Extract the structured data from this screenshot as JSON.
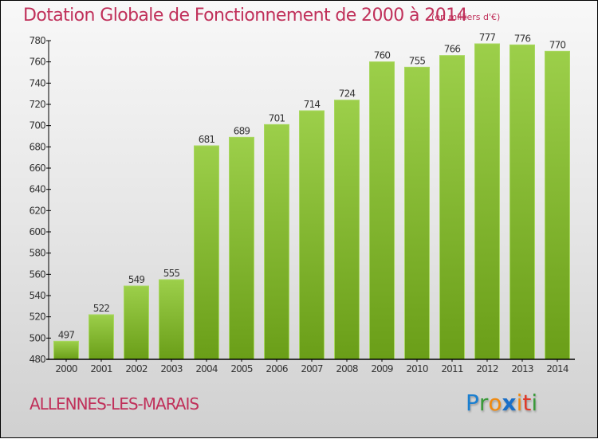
{
  "title": "Dotation Globale de Fonctionnement de 2000 à 2014",
  "subtitle": "(en milliers d'€)",
  "commune": "ALLENNES-LES-MARAIS",
  "logo": {
    "letters": [
      {
        "ch": "P",
        "color": "#1a7fd0"
      },
      {
        "ch": "r",
        "color": "#3a9a3a"
      },
      {
        "ch": "o",
        "color": "#f08a10"
      },
      {
        "ch": "x",
        "color": "#1a6fc8"
      },
      {
        "ch": "i",
        "color": "#f08a10"
      },
      {
        "ch": "t",
        "color": "#e03a2a"
      },
      {
        "ch": "i",
        "color": "#3a9a3a"
      }
    ]
  },
  "colors": {
    "title": "#c0305a",
    "bar_top": "#9ccf4a",
    "bar_bottom": "#6a9e18",
    "bar_edge": "#a8d860"
  },
  "chart_data": {
    "type": "bar",
    "title": "Dotation Globale de Fonctionnement de 2000 à 2014",
    "subtitle": "(en milliers d'€)",
    "xlabel": "",
    "ylabel": "",
    "categories": [
      "2000",
      "2001",
      "2002",
      "2003",
      "2004",
      "2005",
      "2006",
      "2007",
      "2008",
      "2009",
      "2010",
      "2011",
      "2012",
      "2013",
      "2014"
    ],
    "values": [
      497,
      522,
      549,
      555,
      681,
      689,
      701,
      714,
      724,
      760,
      755,
      766,
      777,
      776,
      770
    ],
    "ylim": [
      480,
      780
    ],
    "yticks": [
      480,
      500,
      520,
      540,
      560,
      580,
      600,
      620,
      640,
      660,
      680,
      700,
      720,
      740,
      760,
      780
    ],
    "grid": false,
    "legend": "none",
    "data_labels": true
  }
}
